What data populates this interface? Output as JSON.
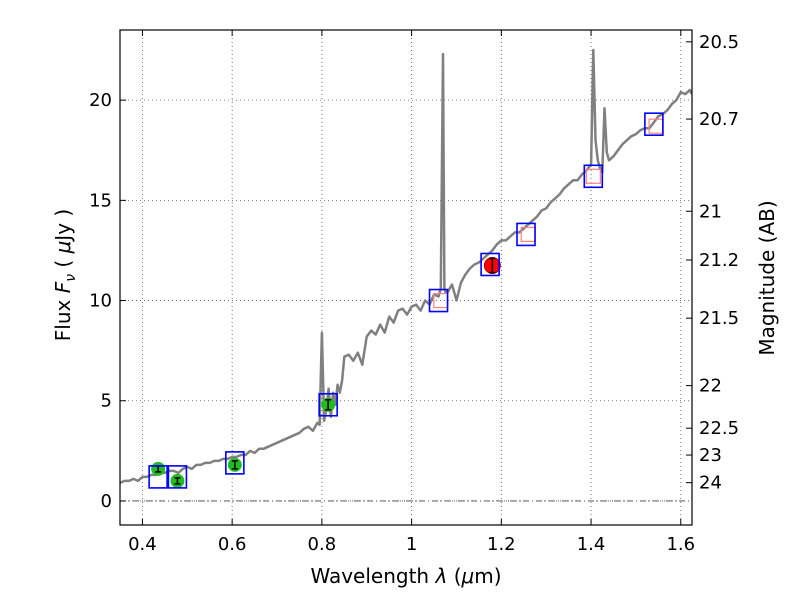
{
  "chart_data": {
    "type": "line",
    "xlabel_text": "Wavelength",
    "xlabel_symbol": "λ",
    "xlabel_unit_open": "(",
    "xlabel_unit_mu": "μ",
    "xlabel_unit_rest": "m)",
    "ylabel_text": "Flux",
    "ylabel_symbol": "F",
    "ylabel_subscript": "ν",
    "ylabel_unit_open": "(",
    "ylabel_unit_mu": "μ",
    "ylabel_unit_rest": "Jy )",
    "y2label": "Magnitude (AB)",
    "xlim": [
      0.35,
      1.625
    ],
    "ylim": [
      -1.2,
      23.5
    ],
    "xticks": [
      {
        "v": 0.4,
        "label": "0.4"
      },
      {
        "v": 0.6,
        "label": "0.6"
      },
      {
        "v": 0.8,
        "label": "0.8"
      },
      {
        "v": 1.0,
        "label": "1"
      },
      {
        "v": 1.2,
        "label": "1.2"
      },
      {
        "v": 1.4,
        "label": "1.4"
      },
      {
        "v": 1.6,
        "label": "1.6"
      }
    ],
    "yticks": [
      {
        "v": 0,
        "label": "0"
      },
      {
        "v": 5,
        "label": "5"
      },
      {
        "v": 10,
        "label": "10"
      },
      {
        "v": 15,
        "label": "15"
      },
      {
        "v": 20,
        "label": "20"
      }
    ],
    "y2ticks": [
      {
        "v": 20.5,
        "label": "20.5"
      },
      {
        "v": 20.7,
        "label": "20.7"
      },
      {
        "v": 21,
        "label": "21"
      },
      {
        "v": 21.2,
        "label": "21.2"
      },
      {
        "v": 21.5,
        "label": "21.5"
      },
      {
        "v": 22,
        "label": "22"
      },
      {
        "v": 22.5,
        "label": "22.5"
      },
      {
        "v": 23,
        "label": "23"
      },
      {
        "v": 24,
        "label": "24"
      }
    ],
    "colors": {
      "spectrum": "#808080",
      "model_box": "#0000ff",
      "obs_box": "#ff8080",
      "observed_green": "#22bb22",
      "observed_red": "#ff0000",
      "errorbar": "#000000"
    },
    "spectrum": {
      "name": "model spectrum",
      "x": [
        0.35,
        0.36,
        0.37,
        0.38,
        0.39,
        0.4,
        0.41,
        0.42,
        0.43,
        0.44,
        0.45,
        0.46,
        0.47,
        0.48,
        0.49,
        0.5,
        0.51,
        0.52,
        0.53,
        0.54,
        0.55,
        0.56,
        0.57,
        0.58,
        0.59,
        0.6,
        0.61,
        0.62,
        0.63,
        0.64,
        0.65,
        0.66,
        0.67,
        0.68,
        0.69,
        0.7,
        0.71,
        0.72,
        0.73,
        0.74,
        0.75,
        0.76,
        0.77,
        0.78,
        0.79,
        0.795,
        0.8,
        0.805,
        0.81,
        0.815,
        0.82,
        0.825,
        0.83,
        0.835,
        0.84,
        0.845,
        0.85,
        0.86,
        0.87,
        0.88,
        0.89,
        0.9,
        0.91,
        0.92,
        0.93,
        0.94,
        0.95,
        0.96,
        0.97,
        0.98,
        0.99,
        1.0,
        1.01,
        1.02,
        1.03,
        1.04,
        1.05,
        1.06,
        1.065,
        1.07,
        1.073,
        1.076,
        1.08,
        1.09,
        1.1,
        1.11,
        1.12,
        1.13,
        1.14,
        1.15,
        1.16,
        1.17,
        1.18,
        1.19,
        1.2,
        1.21,
        1.22,
        1.23,
        1.24,
        1.25,
        1.26,
        1.27,
        1.28,
        1.29,
        1.3,
        1.31,
        1.32,
        1.33,
        1.34,
        1.35,
        1.36,
        1.37,
        1.38,
        1.39,
        1.4,
        1.405,
        1.41,
        1.415,
        1.42,
        1.425,
        1.43,
        1.435,
        1.44,
        1.45,
        1.46,
        1.47,
        1.48,
        1.49,
        1.5,
        1.51,
        1.52,
        1.53,
        1.54,
        1.55,
        1.56,
        1.57,
        1.58,
        1.59,
        1.6,
        1.61,
        1.62,
        1.625
      ],
      "y": [
        0.9,
        1.0,
        1.0,
        1.1,
        1.0,
        1.2,
        1.2,
        1.3,
        1.3,
        1.4,
        1.4,
        1.5,
        1.5,
        1.4,
        1.6,
        1.7,
        1.6,
        1.8,
        1.8,
        1.9,
        1.9,
        2.0,
        2.0,
        2.1,
        2.1,
        2.2,
        2.2,
        2.3,
        2.3,
        2.5,
        2.4,
        2.6,
        2.6,
        2.7,
        2.8,
        2.9,
        3.0,
        3.1,
        3.2,
        3.3,
        3.4,
        3.6,
        3.7,
        3.5,
        3.9,
        3.8,
        8.4,
        4.0,
        4.6,
        5.6,
        4.2,
        5.4,
        4.8,
        5.8,
        5.4,
        6.0,
        7.2,
        7.3,
        7.0,
        7.4,
        6.8,
        8.2,
        8.5,
        8.3,
        8.8,
        8.4,
        9.2,
        8.9,
        9.5,
        9.6,
        9.3,
        9.7,
        9.8,
        9.5,
        10.0,
        9.8,
        10.3,
        10.2,
        10.6,
        22.3,
        10.6,
        10.4,
        10.4,
        10.8,
        10.0,
        10.9,
        11.3,
        11.6,
        11.8,
        11.9,
        12.1,
        12.3,
        12.5,
        12.8,
        13.0,
        13.0,
        13.2,
        13.4,
        13.4,
        13.6,
        13.8,
        14.0,
        14.2,
        14.5,
        14.6,
        14.9,
        15.1,
        15.3,
        15.6,
        15.8,
        16.0,
        16.0,
        16.3,
        16.5,
        16.8,
        22.5,
        18.0,
        17.0,
        16.6,
        16.4,
        19.6,
        17.4,
        17.0,
        17.2,
        17.5,
        17.8,
        18.0,
        18.2,
        18.3,
        18.5,
        18.6,
        18.6,
        18.9,
        19.2,
        19.3,
        19.5,
        19.8,
        20.0,
        20.4,
        20.3,
        20.5,
        20.3
      ]
    },
    "series": [
      {
        "name": "model photometry",
        "x": [
          0.435,
          0.478,
          0.606,
          0.814,
          1.06,
          1.175,
          1.255,
          1.405,
          1.54
        ],
        "y": [
          1.2,
          1.2,
          1.9,
          4.8,
          10.0,
          11.8,
          13.3,
          16.2,
          18.8
        ]
      },
      {
        "name": "observed photometry (green)",
        "x": [
          0.435,
          0.478,
          0.606,
          0.814
        ],
        "y": [
          1.6,
          1.0,
          1.8,
          4.8
        ],
        "err": [
          0.15,
          0.15,
          0.2,
          0.25
        ]
      },
      {
        "name": "observed photometry (red)",
        "x": [
          1.18
        ],
        "y": [
          11.75
        ],
        "err": [
          0.35
        ]
      },
      {
        "name": "open photometry boxes",
        "x": [
          1.065,
          1.26,
          1.405,
          1.545
        ],
        "y": [
          10.0,
          13.3,
          16.2,
          18.7
        ]
      }
    ]
  }
}
